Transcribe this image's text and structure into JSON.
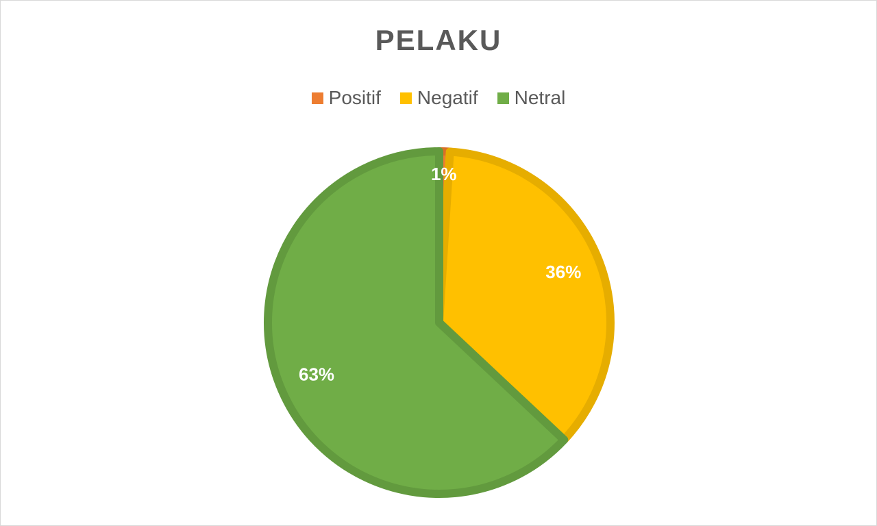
{
  "chart_data": {
    "type": "pie",
    "title": "PELAKU",
    "categories": [
      "Positif",
      "Negatif",
      "Netral"
    ],
    "values": [
      1,
      36,
      63
    ],
    "value_unit": "%",
    "data_labels": [
      "1%",
      "36%",
      "63%"
    ],
    "colors": [
      "#ED7D31",
      "#FFC000",
      "#70AD47"
    ],
    "border_colors": [
      "#D96F28",
      "#E6AD00",
      "#629A3E"
    ],
    "start_angle_deg": 0,
    "direction": "clockwise",
    "legend": {
      "position": "top",
      "entries": [
        "Positif",
        "Negatif",
        "Netral"
      ]
    }
  }
}
